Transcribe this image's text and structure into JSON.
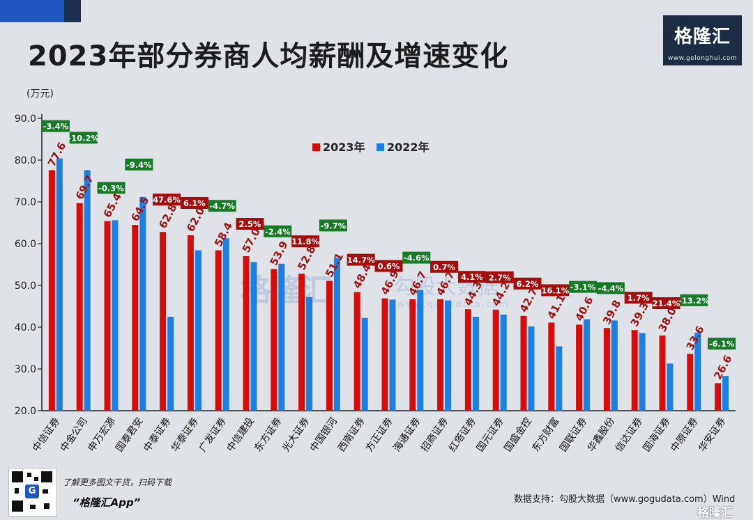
{
  "header": {
    "title": "2023年部分券商人均薪酬及增速变化",
    "logo_text": "格隆汇",
    "logo_site": "www.gelonghui.com"
  },
  "footer": {
    "promo_line1": "了解更多图文干货，扫码下载",
    "promo_line2": "“格隆汇App”",
    "source": "数据支持：勾股大数据（www.gogudata.com）Wind",
    "watermark": "格隆汇",
    "qr_badge": "G"
  },
  "colors": {
    "series_2023": "#d40d0d",
    "series_2022": "#1e7fe3",
    "badge_positive": "#a50d0d",
    "badge_negative": "#177b26",
    "value_label": "#9b1212",
    "header_block": "#1f57c0",
    "logo_bg": "#1c2c44"
  },
  "chart_data": {
    "type": "bar",
    "unit_label": "(万元)",
    "ylim": [
      20,
      90
    ],
    "yticks": [
      "90.0",
      "80.0",
      "70.0",
      "60.0",
      "50.0",
      "40.0",
      "30.0",
      "20.0"
    ],
    "grid": false,
    "legend_position": "top-center",
    "categories": [
      "中信证券",
      "中金公司",
      "申万宏源",
      "国泰君安",
      "中泰证券",
      "华泰证券",
      "广发证券",
      "中信建投",
      "东方证券",
      "光大证券",
      "中国银河",
      "西南证券",
      "方正证券",
      "海通证券",
      "招商证券",
      "红塔证券",
      "国元证券",
      "国盛金控",
      "东方财富",
      "国联证券",
      "华鑫股份",
      "信达证券",
      "国海证券",
      "中原证券",
      "华安证券"
    ],
    "series": [
      {
        "name": "2023年",
        "values": [
          77.6,
          69.7,
          65.4,
          64.5,
          62.8,
          62.0,
          58.4,
          57.0,
          53.9,
          52.8,
          51.1,
          48.4,
          46.9,
          46.7,
          46.7,
          44.3,
          44.2,
          42.7,
          41.1,
          40.6,
          39.8,
          39.3,
          38.0,
          33.6,
          26.6
        ]
      },
      {
        "name": "2022年",
        "values": [
          80.4,
          77.6,
          65.6,
          71.2,
          42.5,
          58.4,
          61.3,
          55.6,
          55.2,
          47.2,
          56.6,
          42.2,
          46.6,
          48.9,
          46.4,
          42.5,
          43.0,
          40.2,
          35.4,
          41.9,
          41.6,
          38.6,
          31.3,
          38.7,
          28.3
        ]
      }
    ],
    "value_labels": [
      "77.6",
      "69.7",
      "65.4",
      "64.5",
      "62.8",
      "62.0",
      "58.4",
      "57.0",
      "53.9",
      "52.8",
      "51.1",
      "48.4",
      "46.9",
      "46.7",
      "46.7",
      "44.3",
      "44.2",
      "42.7",
      "41.1",
      "40.6",
      "39.8",
      "39.3",
      "38.0",
      "33.6",
      "26.6"
    ],
    "growth_labels": [
      "-3.4%",
      "-10.2%",
      "-0.3%",
      "-9.4%",
      "47.6%",
      "6.1%",
      "-4.7%",
      "2.5%",
      "-2.4%",
      "11.8%",
      "-9.7%",
      "14.7%",
      "0.6%",
      "-4.6%",
      "0.7%",
      "4.1%",
      "2.7%",
      "6.2%",
      "16.1%",
      "-3.1%",
      "-4.4%",
      "1.7%",
      "21.4%",
      "-13.2%",
      "-6.1%"
    ],
    "watermarks": [
      "格隆汇",
      "勾股大数据",
      "www.gogudata.com"
    ]
  }
}
